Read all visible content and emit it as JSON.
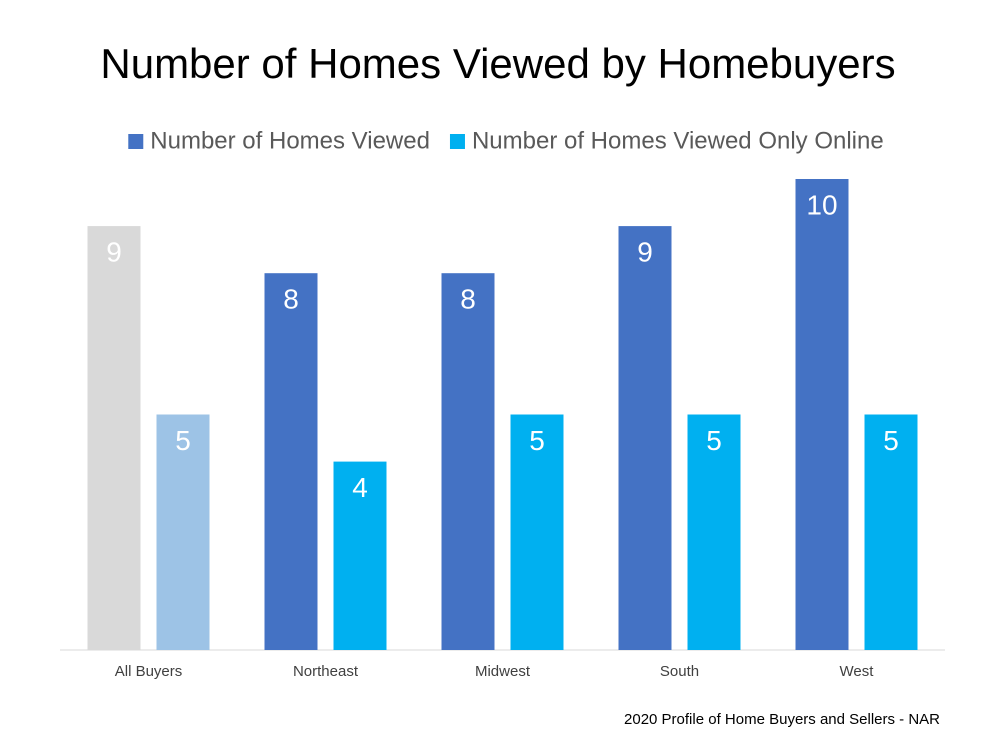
{
  "chart_data": {
    "type": "bar",
    "title": "Number of Homes Viewed by Homebuyers",
    "source": "2020 Profile of Home Buyers and Sellers - NAR",
    "categories": [
      "All Buyers",
      "Northeast",
      "Midwest",
      "South",
      "West"
    ],
    "series": [
      {
        "name": "Number of Homes Viewed",
        "color": "#4472c4",
        "colors": [
          "#d9d9d9",
          "#4472c4",
          "#4472c4",
          "#4472c4",
          "#4472c4"
        ],
        "values": [
          9,
          8,
          8,
          9,
          10
        ]
      },
      {
        "name": "Number of Homes Viewed Only Online",
        "color": "#00b0f0",
        "colors": [
          "#9dc3e6",
          "#00b0f0",
          "#00b0f0",
          "#00b0f0",
          "#00b0f0"
        ],
        "values": [
          5,
          4,
          5,
          5,
          5
        ]
      }
    ],
    "ylim": [
      0,
      10
    ],
    "legend": "top"
  }
}
